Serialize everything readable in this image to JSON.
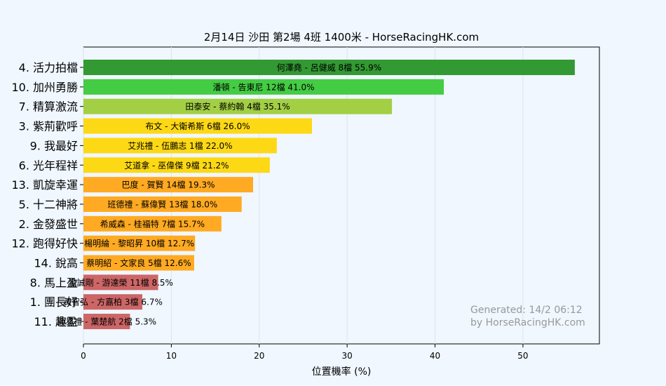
{
  "chart_data": {
    "type": "bar",
    "orientation": "horizontal",
    "title": "2月14日  沙田  第2場  4班  1400米 - HorseRacingHK.com",
    "xlabel": "位置機率 (%)",
    "ylabel": "",
    "xlim": [
      0,
      58.7
    ],
    "xticks": [
      0,
      10,
      20,
      30,
      40,
      50
    ],
    "grid": "vertical",
    "categories": [
      "4. 活力拍檔",
      "10. 加州勇勝",
      "7. 精算激流",
      "3. 紫荊歡呼",
      "9. 我最好",
      "6. 光年程祥",
      "13. 凱旋幸運",
      "5. 十二神將",
      "2. 金發盛世",
      "12. 跑得好快",
      "14. 銳高",
      "8. 馬上盈",
      "1. 團長好",
      "11. 趣盈"
    ],
    "values": [
      55.9,
      41.0,
      35.1,
      26.0,
      22.0,
      21.2,
      19.3,
      18.0,
      15.7,
      12.7,
      12.6,
      8.5,
      6.7,
      5.3
    ],
    "bar_labels": [
      "何澤堯 - 呂健威 8檔  55.9%",
      "潘頓 - 告東尼 12檔  41.0%",
      "田泰安 - 蔡約翰 4檔  35.1%",
      "布文 - 大衛希斯 6檔  26.0%",
      "艾兆禮 - 伍鵬志 1檔  22.0%",
      "艾道拿 - 巫偉傑 9檔  21.2%",
      "巴度 - 賀賢 14檔  19.3%",
      "班德禮 - 蘇偉賢 13檔  18.0%",
      "希威森 - 桂福特 7檔  15.7%",
      "楊明綸 - 黎昭昇 10檔  12.7%",
      "蔡明紹 - 文家良 5檔  12.6%",
      "金誠剛 - 游達榮 11檔  8.5%",
      "黃智弘 - 方嘉柏 3檔  6.7%",
      "鍾易禮 - 葉楚航 2檔  5.3%"
    ],
    "colors": [
      "#339933",
      "#44cc44",
      "#a2cf44",
      "#fdd815",
      "#fdd815",
      "#fdd815",
      "#ffaa22",
      "#ffaa22",
      "#ffaa22",
      "#ffaa22",
      "#ffaa22",
      "#cd6666",
      "#cd6666",
      "#cd6666"
    ]
  },
  "watermark": {
    "line1": "Generated: 14/2 06:12",
    "line2": "by HorseRacingHK.com"
  }
}
